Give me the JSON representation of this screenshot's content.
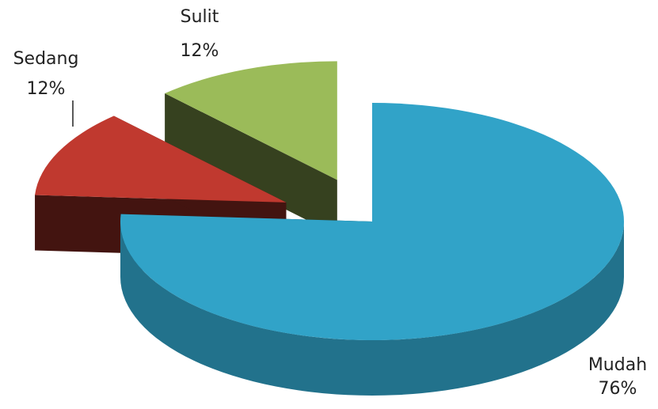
{
  "chart_data": {
    "type": "pie",
    "categories": [
      "Mudah",
      "Sedang",
      "Sulit"
    ],
    "values": [
      76,
      12,
      12
    ],
    "value_labels": [
      "76%",
      "12%",
      "12%"
    ],
    "colors": [
      "#31a3c8",
      "#c0392f",
      "#9bbb59"
    ]
  }
}
